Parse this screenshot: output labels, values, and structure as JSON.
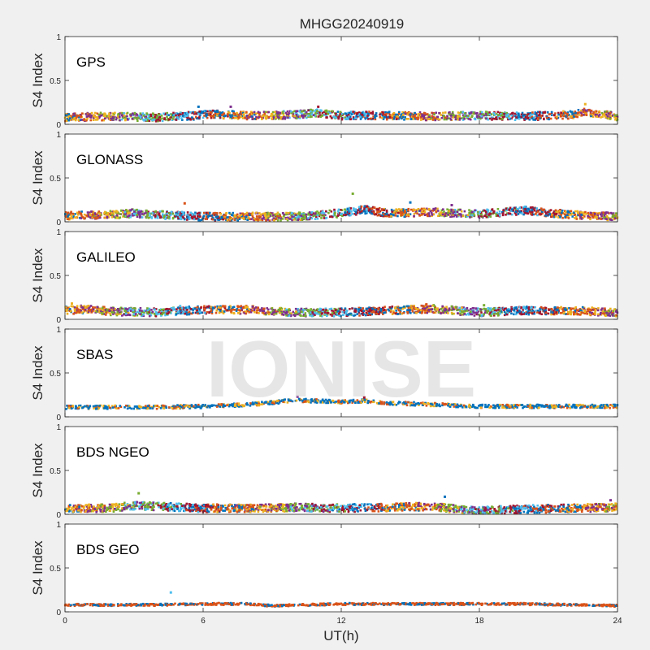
{
  "chart_data": {
    "type": "scatter",
    "title": "MHGG20240919",
    "watermark": "IONISE",
    "xlabel": "UT(h)",
    "ylabel": "S4 Index",
    "xlim": [
      0,
      24
    ],
    "ylim": [
      0,
      1
    ],
    "xticks": [
      0,
      6,
      12,
      18,
      24
    ],
    "yticks": [
      0,
      0.5,
      1
    ],
    "ytick_labels": [
      "0",
      "0.5",
      "1"
    ],
    "grid": false,
    "series_colors": [
      "#0072BD",
      "#D95319",
      "#EDB120",
      "#7E2F8E",
      "#77AC30",
      "#4DBEEE",
      "#A2142F"
    ],
    "panels": [
      {
        "label": "GPS",
        "baseline": [
          [
            0,
            0.08
          ],
          [
            2,
            0.09
          ],
          [
            4,
            0.08
          ],
          [
            5.7,
            0.1
          ],
          [
            6,
            0.12
          ],
          [
            8,
            0.1
          ],
          [
            10,
            0.11
          ],
          [
            11,
            0.13
          ],
          [
            12,
            0.1
          ],
          [
            14,
            0.1
          ],
          [
            16,
            0.09
          ],
          [
            18,
            0.1
          ],
          [
            20,
            0.09
          ],
          [
            22,
            0.11
          ],
          [
            22.5,
            0.14
          ],
          [
            24,
            0.09
          ]
        ],
        "peaks": [
          [
            5.8,
            0.2
          ],
          [
            7.2,
            0.2
          ],
          [
            11.0,
            0.2
          ],
          [
            22.6,
            0.23
          ]
        ]
      },
      {
        "label": "GLONASS",
        "baseline": [
          [
            0,
            0.07
          ],
          [
            2,
            0.08
          ],
          [
            3,
            0.1
          ],
          [
            4,
            0.08
          ],
          [
            6,
            0.06
          ],
          [
            8,
            0.06
          ],
          [
            10,
            0.06
          ],
          [
            12,
            0.1
          ],
          [
            13,
            0.14
          ],
          [
            14,
            0.1
          ],
          [
            16,
            0.11
          ],
          [
            18,
            0.09
          ],
          [
            20,
            0.13
          ],
          [
            22,
            0.08
          ],
          [
            24,
            0.06
          ]
        ],
        "peaks": [
          [
            5.2,
            0.21
          ],
          [
            12.5,
            0.32
          ],
          [
            15.0,
            0.22
          ],
          [
            16.8,
            0.19
          ]
        ]
      },
      {
        "label": "GALILEO",
        "baseline": [
          [
            0,
            0.1
          ],
          [
            1,
            0.12
          ],
          [
            2,
            0.09
          ],
          [
            4,
            0.08
          ],
          [
            6,
            0.11
          ],
          [
            8,
            0.11
          ],
          [
            10,
            0.08
          ],
          [
            12,
            0.08
          ],
          [
            14,
            0.1
          ],
          [
            16,
            0.12
          ],
          [
            18,
            0.08
          ],
          [
            20,
            0.1
          ],
          [
            22,
            0.1
          ],
          [
            24,
            0.08
          ]
        ],
        "peaks": [
          [
            0.3,
            0.18
          ],
          [
            5.0,
            0.15
          ],
          [
            15.7,
            0.17
          ],
          [
            18.2,
            0.16
          ]
        ]
      },
      {
        "label": "SBAS",
        "baseline": [
          [
            0,
            0.11
          ],
          [
            4,
            0.11
          ],
          [
            6,
            0.12
          ],
          [
            8,
            0.14
          ],
          [
            10,
            0.19
          ],
          [
            12,
            0.17
          ],
          [
            13,
            0.18
          ],
          [
            14,
            0.16
          ],
          [
            16,
            0.14
          ],
          [
            18,
            0.12
          ],
          [
            20,
            0.12
          ],
          [
            22,
            0.12
          ],
          [
            24,
            0.12
          ]
        ],
        "peaks": [
          [
            10.1,
            0.23
          ],
          [
            13.0,
            0.22
          ]
        ]
      },
      {
        "label": "BDS NGEO",
        "baseline": [
          [
            0,
            0.07
          ],
          [
            2,
            0.07
          ],
          [
            3,
            0.1
          ],
          [
            4,
            0.09
          ],
          [
            6,
            0.07
          ],
          [
            8,
            0.07
          ],
          [
            10,
            0.08
          ],
          [
            12,
            0.07
          ],
          [
            14,
            0.08
          ],
          [
            16,
            0.09
          ],
          [
            17,
            0.06
          ],
          [
            18,
            0.04
          ],
          [
            20,
            0.06
          ],
          [
            22,
            0.07
          ],
          [
            24,
            0.08
          ]
        ],
        "peaks": [
          [
            3.2,
            0.24
          ],
          [
            16.5,
            0.2
          ],
          [
            23.7,
            0.16
          ]
        ]
      },
      {
        "label": "BDS GEO",
        "baseline": [
          [
            0,
            0.08
          ],
          [
            4,
            0.08
          ],
          [
            6,
            0.09
          ],
          [
            8,
            0.09
          ],
          [
            9,
            0.07
          ],
          [
            12,
            0.09
          ],
          [
            14,
            0.09
          ],
          [
            18,
            0.09
          ],
          [
            20,
            0.09
          ],
          [
            22,
            0.08
          ],
          [
            24,
            0.07
          ]
        ],
        "peaks": [
          [
            4.6,
            0.22
          ]
        ]
      }
    ]
  }
}
